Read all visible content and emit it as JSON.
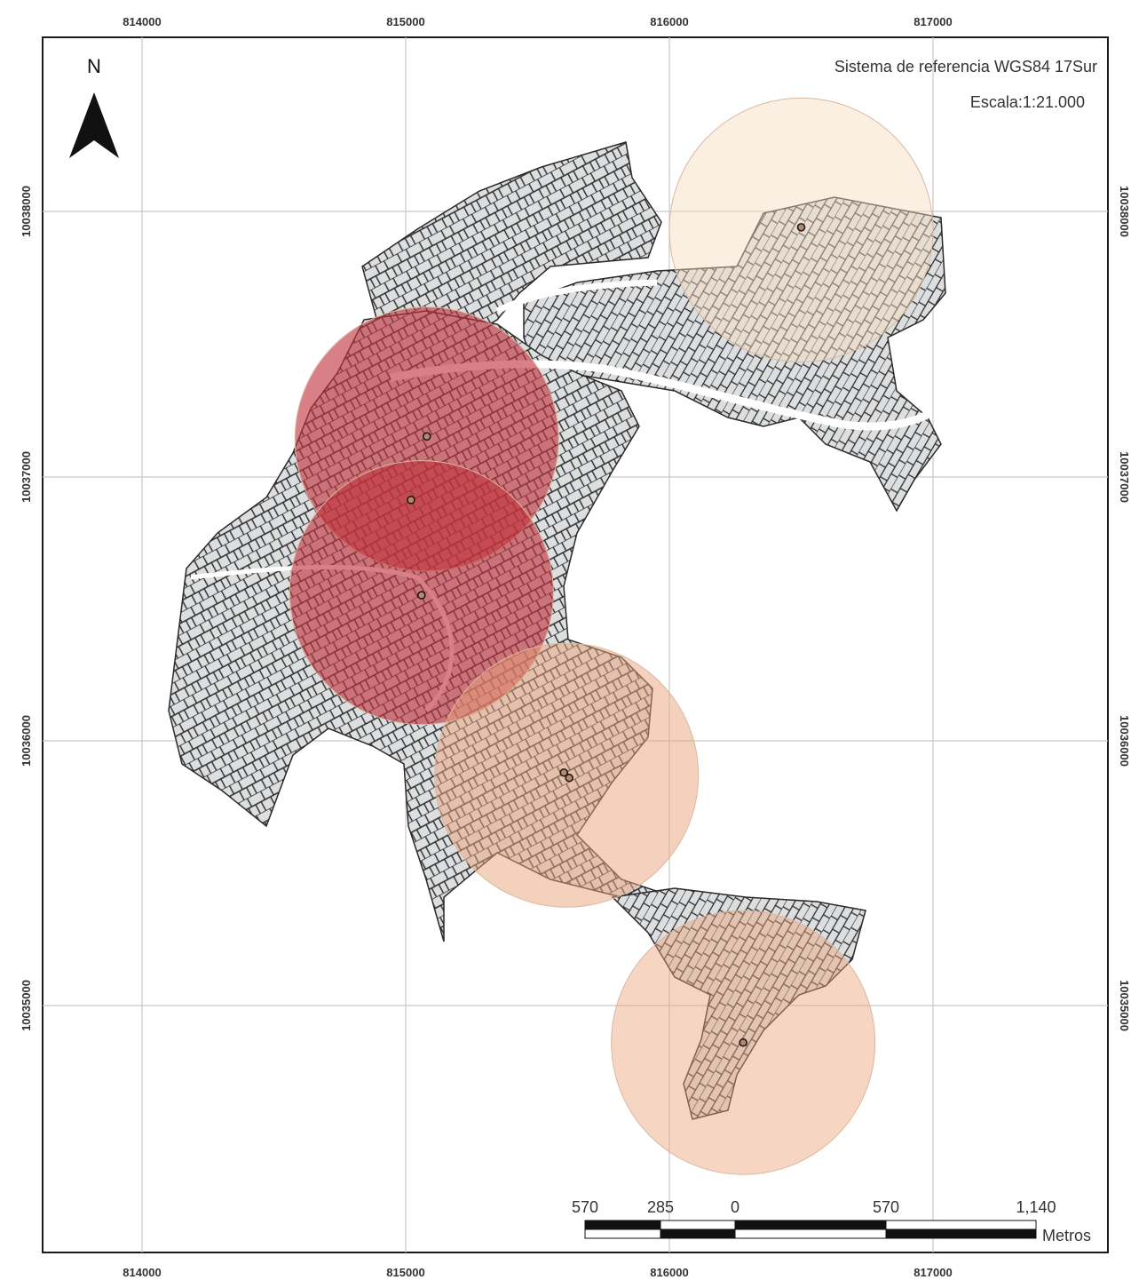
{
  "map": {
    "crs_label": "Sistema de referencia WGS84 17Sur",
    "scale_label": "Escala:1:21.000",
    "north_label": "N",
    "x_ticks": [
      "814000",
      "815000",
      "816000",
      "817000"
    ],
    "y_ticks": [
      "10038000",
      "10037000",
      "10036000",
      "10035000"
    ],
    "scalebar": {
      "labels": [
        "570",
        "285",
        "0",
        "570",
        "1,140"
      ],
      "unit": "Metros"
    },
    "buffers": [
      {
        "id": "buffer-ne",
        "easting": 816500,
        "northing": 10037930,
        "color": "#f6dcbf",
        "opacity": 0.45
      },
      {
        "id": "buffer-center-north",
        "easting": 815080,
        "northing": 10037140,
        "color": "#c0323c",
        "opacity": 0.62
      },
      {
        "id": "buffer-center",
        "easting": 815060,
        "northing": 10036560,
        "color": "#c0323c",
        "opacity": 0.62
      },
      {
        "id": "buffer-south",
        "easting": 815610,
        "northing": 10035870,
        "color": "#eaa37b",
        "opacity": 0.5
      },
      {
        "id": "buffer-far-south",
        "easting": 816280,
        "northing": 10034860,
        "color": "#eaa37b",
        "opacity": 0.45
      }
    ],
    "points": [
      {
        "easting": 816500,
        "northing": 10037940
      },
      {
        "easting": 815080,
        "northing": 10037150
      },
      {
        "easting": 815020,
        "northing": 10036910
      },
      {
        "easting": 815060,
        "northing": 10036550
      },
      {
        "easting": 815600,
        "northing": 10035880
      },
      {
        "easting": 815620,
        "northing": 10035860
      },
      {
        "easting": 816280,
        "northing": 10034860
      }
    ],
    "colors": {
      "parcel_fill": "#dcdee0",
      "parcel_stroke": "#2a2a2a",
      "frame": "#1a1a1a",
      "grid": "#c8c8c8"
    }
  }
}
